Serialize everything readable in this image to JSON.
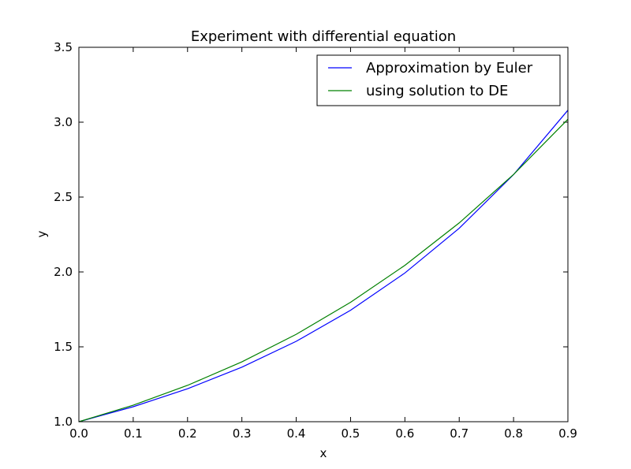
{
  "chart_data": {
    "type": "line",
    "title": "Experiment with differential equation",
    "xlabel": "x",
    "ylabel": "y",
    "xlim": [
      0.0,
      0.9
    ],
    "ylim": [
      1.0,
      3.5
    ],
    "xticks": [
      "0.0",
      "0.1",
      "0.2",
      "0.3",
      "0.4",
      "0.5",
      "0.6",
      "0.7",
      "0.8",
      "0.9"
    ],
    "yticks": [
      "1.0",
      "1.5",
      "2.0",
      "2.5",
      "3.0",
      "3.5"
    ],
    "grid": false,
    "legend_position": "top-right",
    "x": [
      0.0,
      0.1,
      0.2,
      0.3,
      0.4,
      0.5,
      0.6,
      0.7,
      0.8,
      0.9
    ],
    "series": [
      {
        "name": "Approximation by Euler",
        "color": "#0000ff",
        "values": [
          1.0,
          1.1,
          1.22,
          1.364,
          1.5368,
          1.7442,
          1.993,
          2.2916,
          2.6499,
          3.0799
        ]
      },
      {
        "name": "using solution to DE",
        "color": "#008000",
        "values": [
          1.0,
          1.1103,
          1.2428,
          1.3997,
          1.5836,
          1.7974,
          2.0442,
          2.3275,
          2.6511,
          3.0192
        ]
      }
    ]
  }
}
